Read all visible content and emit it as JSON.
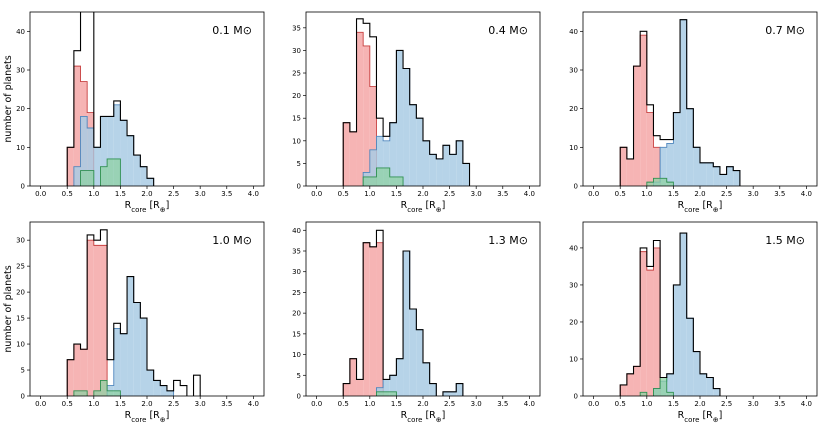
{
  "figure": {
    "ylabel": "number of planets",
    "xlabel_main": "R",
    "xlabel_sub": "core",
    "xlabel_unit_open": " [R",
    "xlabel_unit_sub": "⊕",
    "xlabel_unit_close": "]",
    "mass_unit": "M",
    "sun_symbol": "⊙"
  },
  "colors": {
    "red": "#f4a7a7",
    "blue": "#a9cbe4",
    "green": "#8fd2a4",
    "red_edge": "#c84040",
    "blue_edge": "#4f86bd",
    "green_edge": "#2f9050",
    "total_edge": "#000000"
  },
  "chart_data": [
    {
      "type": "bar",
      "subtype": "step-histogram",
      "title": "0.1 M⊙",
      "xlabel": "Rcore [R⊕]",
      "ylabel": "number of planets",
      "bin_width": 0.125,
      "bins_start": 0.0,
      "xlim": [
        -0.2,
        4.2
      ],
      "ylim": [
        0,
        45
      ],
      "xticks": [
        0.0,
        0.5,
        1.0,
        1.5,
        2.0,
        2.5,
        3.0,
        3.5,
        4.0
      ],
      "yticks": [
        0,
        10,
        20,
        30,
        40
      ],
      "series": [
        {
          "name": "red",
          "values": [
            0,
            0,
            0,
            0,
            10,
            31,
            27,
            19,
            0,
            0,
            0,
            0,
            0,
            0,
            0,
            0,
            0,
            0,
            0,
            0,
            0,
            0,
            0,
            0,
            0,
            0,
            0,
            0,
            0,
            0,
            0,
            0
          ]
        },
        {
          "name": "blue",
          "values": [
            0,
            0,
            0,
            0,
            0,
            5,
            18,
            15,
            10,
            18,
            18,
            21,
            17,
            13,
            8,
            5,
            2,
            0,
            0,
            0,
            0,
            0,
            0,
            0,
            0,
            0,
            0,
            0,
            0,
            0,
            0,
            0
          ]
        },
        {
          "name": "green",
          "values": [
            0,
            0,
            0,
            0,
            0,
            0,
            4,
            4,
            0,
            5,
            7,
            7,
            0,
            0,
            0,
            0,
            0,
            0,
            0,
            0,
            0,
            0,
            0,
            0,
            0,
            0,
            0,
            0,
            0,
            0,
            0,
            0
          ]
        },
        {
          "name": "total",
          "values": [
            0,
            0,
            0,
            0,
            10,
            35,
            50,
            47,
            10,
            18,
            18,
            22,
            17,
            13,
            8,
            5,
            2,
            0,
            0,
            0,
            0,
            0,
            0,
            0,
            0,
            0,
            0,
            0,
            0,
            0,
            0,
            0
          ]
        }
      ]
    },
    {
      "type": "bar",
      "subtype": "step-histogram",
      "title": "0.4 M⊙",
      "xlabel": "Rcore [R⊕]",
      "ylabel": "number of planets",
      "bin_width": 0.125,
      "bins_start": 0.0,
      "xlim": [
        -0.2,
        4.2
      ],
      "ylim": [
        0,
        38.5
      ],
      "xticks": [
        0.0,
        0.5,
        1.0,
        1.5,
        2.0,
        2.5,
        3.0,
        3.5,
        4.0
      ],
      "yticks": [
        0,
        5,
        10,
        15,
        20,
        25,
        30,
        35
      ],
      "series": [
        {
          "name": "red",
          "values": [
            0,
            0,
            0,
            0,
            14,
            12,
            34,
            31,
            22,
            0,
            0,
            0,
            0,
            0,
            0,
            0,
            0,
            0,
            0,
            0,
            0,
            0,
            0,
            0,
            0,
            0,
            0,
            0,
            0,
            0,
            0,
            0
          ]
        },
        {
          "name": "blue",
          "values": [
            0,
            0,
            0,
            0,
            0,
            0,
            0,
            3,
            8,
            11,
            10,
            14,
            30,
            26,
            18,
            15,
            10,
            7,
            6,
            9,
            7,
            10,
            5,
            0,
            0,
            0,
            0,
            0,
            0,
            0,
            0,
            0
          ]
        },
        {
          "name": "green",
          "values": [
            0,
            0,
            0,
            0,
            0,
            0,
            0,
            2,
            2,
            4,
            4,
            2,
            2,
            0,
            0,
            0,
            0,
            0,
            0,
            0,
            0,
            0,
            0,
            0,
            0,
            0,
            0,
            0,
            0,
            0,
            0,
            0
          ]
        },
        {
          "name": "total",
          "values": [
            0,
            0,
            0,
            0,
            14,
            12,
            37,
            36,
            33,
            15,
            11,
            14,
            30,
            26,
            18,
            15,
            10,
            7,
            6,
            9,
            7,
            10,
            5,
            0,
            0,
            0,
            0,
            0,
            0,
            0,
            0,
            0
          ]
        }
      ]
    },
    {
      "type": "bar",
      "subtype": "step-histogram",
      "title": "0.7 M⊙",
      "xlabel": "Rcore [R⊕]",
      "ylabel": "number of planets",
      "bin_width": 0.125,
      "bins_start": 0.0,
      "xlim": [
        -0.2,
        4.2
      ],
      "ylim": [
        0,
        45
      ],
      "xticks": [
        0.0,
        0.5,
        1.0,
        1.5,
        2.0,
        2.5,
        3.0,
        3.5,
        4.0
      ],
      "yticks": [
        0,
        10,
        20,
        30,
        40
      ],
      "series": [
        {
          "name": "red",
          "values": [
            0,
            0,
            0,
            0,
            10,
            7,
            31,
            39,
            19,
            10,
            0,
            0,
            0,
            0,
            0,
            0,
            0,
            0,
            0,
            0,
            0,
            0,
            0,
            0,
            0,
            0,
            0,
            0,
            0,
            0,
            0,
            0
          ]
        },
        {
          "name": "blue",
          "values": [
            0,
            0,
            0,
            0,
            0,
            0,
            0,
            0,
            0,
            1,
            10,
            11,
            19,
            43,
            20,
            10,
            6,
            6,
            5,
            3,
            5,
            4,
            0,
            0,
            0,
            0,
            0,
            0,
            0,
            0,
            0,
            0
          ]
        },
        {
          "name": "green",
          "values": [
            0,
            0,
            0,
            0,
            0,
            0,
            0,
            0,
            1,
            2,
            2,
            1,
            0,
            0,
            0,
            0,
            0,
            0,
            0,
            0,
            0,
            0,
            0,
            0,
            0,
            0,
            0,
            0,
            0,
            0,
            0,
            0
          ]
        },
        {
          "name": "total",
          "values": [
            0,
            0,
            0,
            0,
            10,
            7,
            31,
            40,
            21,
            13,
            12,
            12,
            19,
            43,
            20,
            10,
            6,
            6,
            5,
            3,
            5,
            4,
            0,
            0,
            0,
            0,
            0,
            0,
            0,
            0,
            0,
            0
          ]
        }
      ]
    },
    {
      "type": "bar",
      "subtype": "step-histogram",
      "title": "1.0 M⊙",
      "xlabel": "Rcore [R⊕]",
      "ylabel": "number of planets",
      "bin_width": 0.125,
      "bins_start": 0.0,
      "xlim": [
        -0.2,
        4.2
      ],
      "ylim": [
        0,
        33.5
      ],
      "xticks": [
        0.0,
        0.5,
        1.0,
        1.5,
        2.0,
        2.5,
        3.0,
        3.5,
        4.0
      ],
      "yticks": [
        0,
        5,
        10,
        15,
        20,
        25,
        30
      ],
      "series": [
        {
          "name": "red",
          "values": [
            0,
            0,
            0,
            0,
            7,
            10,
            9,
            30,
            29,
            29,
            0,
            0,
            0,
            0,
            0,
            0,
            0,
            0,
            0,
            0,
            0,
            0,
            0,
            0,
            0,
            0,
            0,
            0,
            0,
            0,
            0,
            0
          ]
        },
        {
          "name": "blue",
          "values": [
            0,
            0,
            0,
            0,
            0,
            0,
            0,
            0,
            0,
            0,
            2,
            13,
            12,
            23,
            18,
            15,
            5,
            3,
            2,
            1,
            0,
            0,
            0,
            0,
            0,
            0,
            0,
            0,
            0,
            0,
            0,
            0
          ]
        },
        {
          "name": "green",
          "values": [
            0,
            0,
            0,
            0,
            0,
            1,
            1,
            0,
            1,
            3,
            1,
            1,
            0,
            0,
            0,
            0,
            0,
            0,
            0,
            0,
            0,
            0,
            0,
            0,
            0,
            0,
            0,
            0,
            0,
            0,
            0,
            0
          ]
        },
        {
          "name": "total",
          "values": [
            0,
            0,
            0,
            0,
            7,
            10,
            9,
            31,
            30,
            32,
            7,
            14,
            12,
            23,
            18,
            15,
            5,
            3,
            2,
            1,
            3,
            2,
            0,
            4,
            0,
            0,
            0,
            0,
            0,
            0,
            0,
            0
          ]
        }
      ]
    },
    {
      "type": "bar",
      "subtype": "step-histogram",
      "title": "1.3 M⊙",
      "xlabel": "Rcore [R⊕]",
      "ylabel": "number of planets",
      "bin_width": 0.125,
      "bins_start": 0.0,
      "xlim": [
        -0.2,
        4.2
      ],
      "ylim": [
        0,
        42
      ],
      "xticks": [
        0.0,
        0.5,
        1.0,
        1.5,
        2.0,
        2.5,
        3.0,
        3.5,
        4.0
      ],
      "yticks": [
        0,
        5,
        10,
        15,
        20,
        25,
        30,
        35,
        40
      ],
      "series": [
        {
          "name": "red",
          "values": [
            0,
            0,
            0,
            0,
            3,
            9,
            4,
            37,
            36,
            37,
            0,
            0,
            0,
            0,
            0,
            0,
            0,
            0,
            0,
            0,
            0,
            0,
            0,
            0,
            0,
            0,
            0,
            0,
            0,
            0,
            0,
            0
          ]
        },
        {
          "name": "blue",
          "values": [
            0,
            0,
            0,
            0,
            0,
            0,
            0,
            0,
            0,
            2,
            4,
            5,
            9,
            35,
            21,
            16,
            8,
            3,
            0,
            1,
            1,
            3,
            0,
            0,
            0,
            0,
            0,
            0,
            0,
            0,
            0,
            0
          ]
        },
        {
          "name": "green",
          "values": [
            0,
            0,
            0,
            0,
            0,
            0,
            0,
            0,
            0,
            1,
            1,
            1,
            0,
            0,
            0,
            0,
            0,
            0,
            0,
            0,
            0,
            0,
            0,
            0,
            0,
            0,
            0,
            0,
            0,
            0,
            0,
            0
          ]
        },
        {
          "name": "total",
          "values": [
            0,
            0,
            0,
            0,
            3,
            9,
            4,
            37,
            36,
            40,
            4,
            5,
            9,
            35,
            21,
            16,
            8,
            3,
            0,
            1,
            1,
            3,
            0,
            0,
            0,
            0,
            0,
            0,
            0,
            0,
            0,
            0
          ]
        }
      ]
    },
    {
      "type": "bar",
      "subtype": "step-histogram",
      "title": "1.5 M⊙",
      "xlabel": "Rcore [R⊕]",
      "ylabel": "number of planets",
      "bin_width": 0.125,
      "bins_start": 0.0,
      "xlim": [
        -0.2,
        4.2
      ],
      "ylim": [
        0,
        47
      ],
      "xticks": [
        0.0,
        0.5,
        1.0,
        1.5,
        2.0,
        2.5,
        3.0,
        3.5,
        4.0
      ],
      "yticks": [
        0,
        10,
        20,
        30,
        40
      ],
      "series": [
        {
          "name": "red",
          "values": [
            0,
            0,
            0,
            0,
            3,
            6,
            8,
            39,
            34,
            40,
            0,
            0,
            0,
            0,
            0,
            0,
            0,
            0,
            0,
            0,
            0,
            0,
            0,
            0,
            0,
            0,
            0,
            0,
            0,
            0,
            0,
            0
          ]
        },
        {
          "name": "blue",
          "values": [
            0,
            0,
            0,
            0,
            0,
            0,
            0,
            0,
            0,
            2,
            4,
            6,
            30,
            44,
            21,
            12,
            6,
            5,
            2,
            0,
            0,
            0,
            0,
            0,
            0,
            0,
            0,
            0,
            0,
            0,
            0,
            0
          ]
        },
        {
          "name": "green",
          "values": [
            0,
            0,
            0,
            0,
            0,
            0,
            0,
            1,
            0,
            2,
            5,
            1,
            0,
            0,
            0,
            0,
            0,
            0,
            0,
            0,
            0,
            0,
            0,
            0,
            0,
            0,
            0,
            0,
            0,
            0,
            0,
            0
          ]
        },
        {
          "name": "total",
          "values": [
            0,
            0,
            0,
            0,
            3,
            6,
            8,
            40,
            35,
            42,
            5,
            6,
            30,
            44,
            21,
            12,
            6,
            5,
            2,
            0,
            0,
            0,
            0,
            0,
            0,
            0,
            0,
            0,
            0,
            0,
            0,
            0
          ]
        }
      ]
    }
  ]
}
